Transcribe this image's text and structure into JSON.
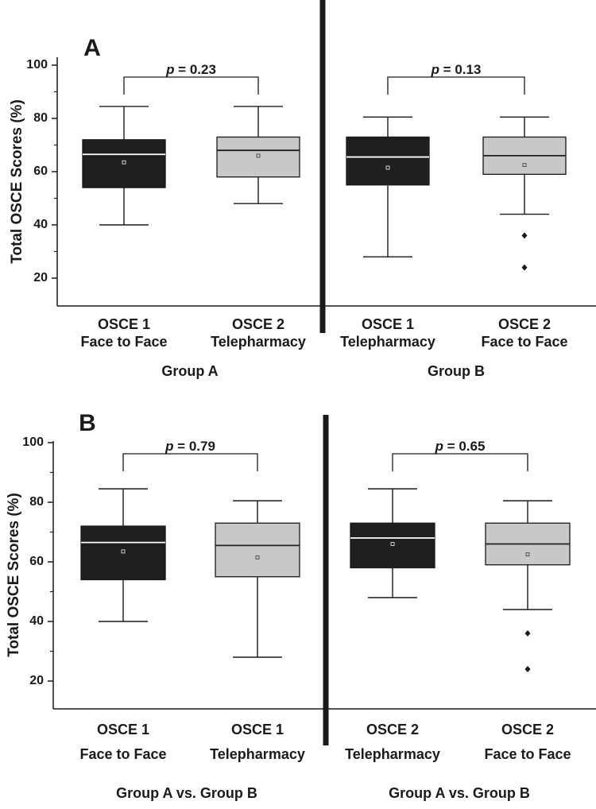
{
  "chart_data": [
    {
      "type": "box",
      "panel_label": "A",
      "ylabel": "Total OSCE Scores (%)",
      "ylim": [
        10,
        100
      ],
      "yticks": [
        20,
        40,
        60,
        80,
        100
      ],
      "groups": [
        {
          "label": "Group A",
          "p_label": "p",
          "p_value": "= 0.23",
          "boxes": [
            {
              "line1": "OSCE 1",
              "line2": "Face to Face",
              "fill": "#1f1f1f",
              "median_color": "#ffffff",
              "whisker_low": 40,
              "q1": 54,
              "median": 66.5,
              "q3": 72,
              "whisker_high": 84.5,
              "mean": 63.5,
              "outliers": []
            },
            {
              "line1": "OSCE 2",
              "line2": "Telepharmacy",
              "fill": "#c8c8c8",
              "median_color": "#1f1f1f",
              "whisker_low": 48,
              "q1": 58,
              "median": 68,
              "q3": 73,
              "whisker_high": 84.5,
              "mean": 66,
              "outliers": []
            }
          ]
        },
        {
          "label": "Group B",
          "p_label": "p",
          "p_value": "= 0.13",
          "boxes": [
            {
              "line1": "OSCE 1",
              "line2": "Telepharmacy",
              "fill": "#1f1f1f",
              "median_color": "#ffffff",
              "whisker_low": 28,
              "q1": 55,
              "median": 65.5,
              "q3": 73,
              "whisker_high": 80.5,
              "mean": 61.5,
              "outliers": []
            },
            {
              "line1": "OSCE 2",
              "line2": "Face to Face",
              "fill": "#c8c8c8",
              "median_color": "#1f1f1f",
              "whisker_low": 44,
              "q1": 59,
              "median": 66,
              "q3": 73,
              "whisker_high": 80.5,
              "mean": 62.5,
              "outliers": [
                36,
                24
              ]
            }
          ]
        }
      ]
    },
    {
      "type": "box",
      "panel_label": "B",
      "ylabel": "Total OSCE Scores (%)",
      "ylim": [
        10,
        100
      ],
      "yticks": [
        20,
        40,
        60,
        80,
        100
      ],
      "groups": [
        {
          "label": "Group A vs. Group B",
          "p_label": "p",
          "p_value": "= 0.79",
          "boxes": [
            {
              "line1": "OSCE 1",
              "line2": "Face to Face",
              "fill": "#1f1f1f",
              "median_color": "#ffffff",
              "whisker_low": 40,
              "q1": 54,
              "median": 66.5,
              "q3": 72,
              "whisker_high": 84.5,
              "mean": 63.5,
              "outliers": []
            },
            {
              "line1": "OSCE 1",
              "line2": "Telepharmacy",
              "fill": "#c8c8c8",
              "median_color": "#1f1f1f",
              "whisker_low": 28,
              "q1": 55,
              "median": 65.5,
              "q3": 73,
              "whisker_high": 80.5,
              "mean": 61.5,
              "outliers": []
            }
          ]
        },
        {
          "label": "Group A vs. Group B",
          "p_label": "p",
          "p_value": "= 0.65",
          "boxes": [
            {
              "line1": "OSCE 2",
              "line2": "Telepharmacy",
              "fill": "#1f1f1f",
              "median_color": "#ffffff",
              "whisker_low": 48,
              "q1": 58,
              "median": 68,
              "q3": 73,
              "whisker_high": 84.5,
              "mean": 66,
              "outliers": []
            },
            {
              "line1": "OSCE 2",
              "line2": "Face to Face",
              "fill": "#c8c8c8",
              "median_color": "#1f1f1f",
              "whisker_low": 44,
              "q1": 59,
              "median": 66,
              "q3": 73,
              "whisker_high": 80.5,
              "mean": 62.5,
              "outliers": [
                36,
                24
              ]
            }
          ]
        }
      ]
    }
  ]
}
